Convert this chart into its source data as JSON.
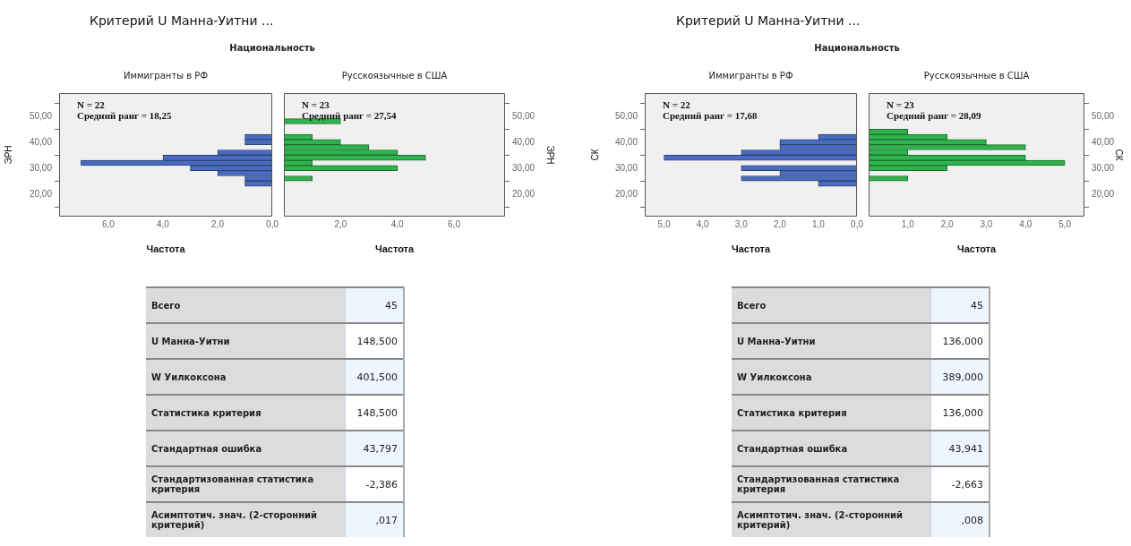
{
  "chart_data": [
    {
      "type": "histogram",
      "orientation": "horizontal",
      "title": "Критерий U Манна-Уитни ...",
      "subtitle": "Национальность",
      "xlabel": "Частота",
      "ylabel": "ЭРН",
      "annotations": [
        "N = 22",
        "Средний ранг = 18,25"
      ],
      "bins": [
        23,
        25,
        27,
        29,
        31,
        33,
        35,
        37,
        39,
        41,
        43,
        45,
        47,
        49
      ],
      "series": [
        {
          "name": "Иммигранты в РФ",
          "color": "#4a6cc0",
          "values": [
            1,
            1,
            2,
            3,
            7,
            4,
            2,
            0,
            1,
            1,
            0,
            0,
            0
          ]
        }
      ],
      "xlim": [
        7.8,
        0
      ],
      "xticks": [
        {
          "value": 6,
          "label": "6,0"
        },
        {
          "value": 4,
          "label": "4,0"
        },
        {
          "value": 2,
          "label": "2,0"
        },
        {
          "value": 0,
          "label": "0,0"
        }
      ],
      "ylim": [
        11.3,
        58.9
      ],
      "yticks": [
        {
          "value": 20,
          "label": "20,00"
        },
        {
          "value": 30,
          "label": "30,00"
        },
        {
          "value": 40,
          "label": "40,00"
        },
        {
          "value": 50,
          "label": "50,00"
        }
      ]
    },
    {
      "type": "histogram",
      "orientation": "horizontal",
      "xlabel": "Частота",
      "ylabel": "ЭРН",
      "annotations": [
        "N = 23",
        "Средний ранг = 27,54"
      ],
      "bins": [
        23,
        25,
        27,
        29,
        31,
        33,
        35,
        37,
        39,
        41,
        43,
        45,
        47,
        49
      ],
      "series": [
        {
          "name": "Русскоязычные в США",
          "color": "#2fb34c",
          "values": [
            0,
            1,
            0,
            4,
            1,
            5,
            4,
            3,
            2,
            1,
            0,
            0,
            2
          ]
        }
      ],
      "xlim": [
        0,
        7.8
      ],
      "xticks": [
        {
          "value": 0,
          "label": null
        },
        {
          "value": 2,
          "label": "2,0"
        },
        {
          "value": 4,
          "label": "4,0"
        },
        {
          "value": 6,
          "label": "6,0"
        }
      ],
      "ylim": [
        11.3,
        58.9
      ],
      "yticks": [
        {
          "value": 20,
          "label": "20,00"
        },
        {
          "value": 30,
          "label": "30,00"
        },
        {
          "value": 40,
          "label": "40,00"
        },
        {
          "value": 50,
          "label": "50,00"
        }
      ]
    },
    {
      "type": "other",
      "categories": [
        "Всего",
        "U Манна-Уитни",
        "W Уилкоксона",
        "Статистика критерия",
        "Стандартная ошибка",
        "Стандартизованная статистика критерия",
        "Асимптотич. знач. (2-сторонний критерий)"
      ],
      "annotations": [
        "45",
        "148,500",
        "401,500",
        "148,500",
        "43,797",
        "-2,386",
        ",017"
      ]
    },
    {
      "type": "histogram",
      "orientation": "horizontal",
      "title": "Критерий U Манна-Уитни ...",
      "subtitle": "Национальность",
      "xlabel": "Частота",
      "ylabel": "СК",
      "annotations": [
        "N = 22",
        "Средний ранг = 17,68"
      ],
      "bins": [
        23,
        25,
        27,
        29,
        31,
        33,
        35,
        37,
        39,
        41,
        43,
        45,
        47
      ],
      "series": [
        {
          "name": "Иммигранты в РФ",
          "color": "#4a6cc0",
          "values": [
            1,
            3,
            2,
            3,
            0,
            5,
            3,
            2,
            2,
            1,
            0,
            0
          ]
        }
      ],
      "xlim": [
        5.5,
        0
      ],
      "xticks": [
        {
          "value": 5,
          "label": "5,0"
        },
        {
          "value": 4,
          "label": "4,0"
        },
        {
          "value": 3,
          "label": "3,0"
        },
        {
          "value": 2,
          "label": "2,0"
        },
        {
          "value": 1,
          "label": "1,0"
        },
        {
          "value": 0,
          "label": "0,0"
        }
      ],
      "ylim": [
        11.3,
        58.9
      ],
      "yticks": [
        {
          "value": 20,
          "label": "20,00"
        },
        {
          "value": 30,
          "label": "30,00"
        },
        {
          "value": 40,
          "label": "40,00"
        },
        {
          "value": 50,
          "label": "50,00"
        }
      ]
    },
    {
      "type": "histogram",
      "orientation": "horizontal",
      "xlabel": "Частота",
      "ylabel": "СК",
      "annotations": [
        "N = 23",
        "Средний ранг = 28,09"
      ],
      "bins": [
        23,
        25,
        27,
        29,
        31,
        33,
        35,
        37,
        39,
        41,
        43,
        45,
        47
      ],
      "series": [
        {
          "name": "Русскоязычные в США",
          "color": "#2fb34c",
          "values": [
            0,
            1,
            0,
            2,
            5,
            4,
            1,
            4,
            3,
            2,
            1,
            0
          ]
        }
      ],
      "xlim": [
        0,
        5.5
      ],
      "xticks": [
        {
          "value": 0,
          "label": null
        },
        {
          "value": 1,
          "label": "1,0"
        },
        {
          "value": 2,
          "label": "2,0"
        },
        {
          "value": 3,
          "label": "3,0"
        },
        {
          "value": 4,
          "label": "4,0"
        },
        {
          "value": 5,
          "label": "5,0"
        }
      ],
      "ylim": [
        11.3,
        58.9
      ],
      "yticks": [
        {
          "value": 20,
          "label": "20,00"
        },
        {
          "value": 30,
          "label": "30,00"
        },
        {
          "value": 40,
          "label": "40,00"
        },
        {
          "value": 50,
          "label": "50,00"
        }
      ]
    },
    {
      "type": "other",
      "categories": [
        "Всего",
        "U Манна-Уитни",
        "W Уилкоксона",
        "Статистика критерия",
        "Стандартная ошибка",
        "Стандартизованная статистика критерия",
        "Асимптотич. знач. (2-сторонний критерий)"
      ],
      "annotations": [
        "45",
        "136,000",
        "389,000",
        "136,000",
        "43,941",
        "-2,663",
        ",008"
      ]
    }
  ]
}
